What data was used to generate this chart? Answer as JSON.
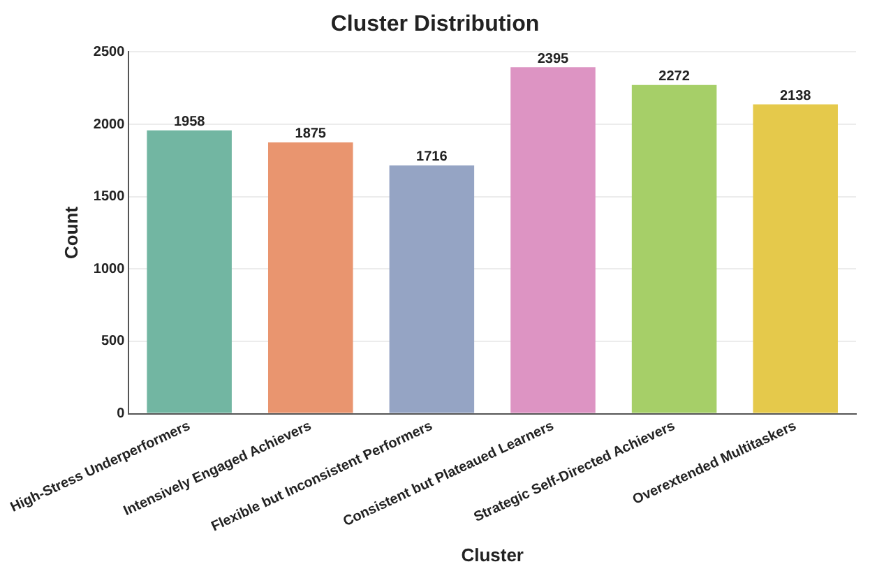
{
  "chart_data": {
    "type": "bar",
    "title": "Cluster Distribution",
    "xlabel": "Cluster",
    "ylabel": "Count",
    "categories": [
      "High-Stress Underperformers",
      "Intensively Engaged Achievers",
      "Flexible but Inconsistent Performers",
      "Consistent but Plateaued Learners",
      "Strategic Self-Directed Achievers",
      "Overextended Multitaskers"
    ],
    "values": [
      1958,
      1875,
      1716,
      2395,
      2272,
      2138
    ],
    "colors": [
      "#72b6a2",
      "#e9956f",
      "#95a4c4",
      "#dd94c3",
      "#a6cf68",
      "#e5c94b"
    ],
    "ylim": [
      0,
      2500
    ],
    "yticks": [
      0,
      500,
      1000,
      1500,
      2000,
      2500
    ],
    "grid": "y",
    "data_labels": true,
    "legend": false
  }
}
